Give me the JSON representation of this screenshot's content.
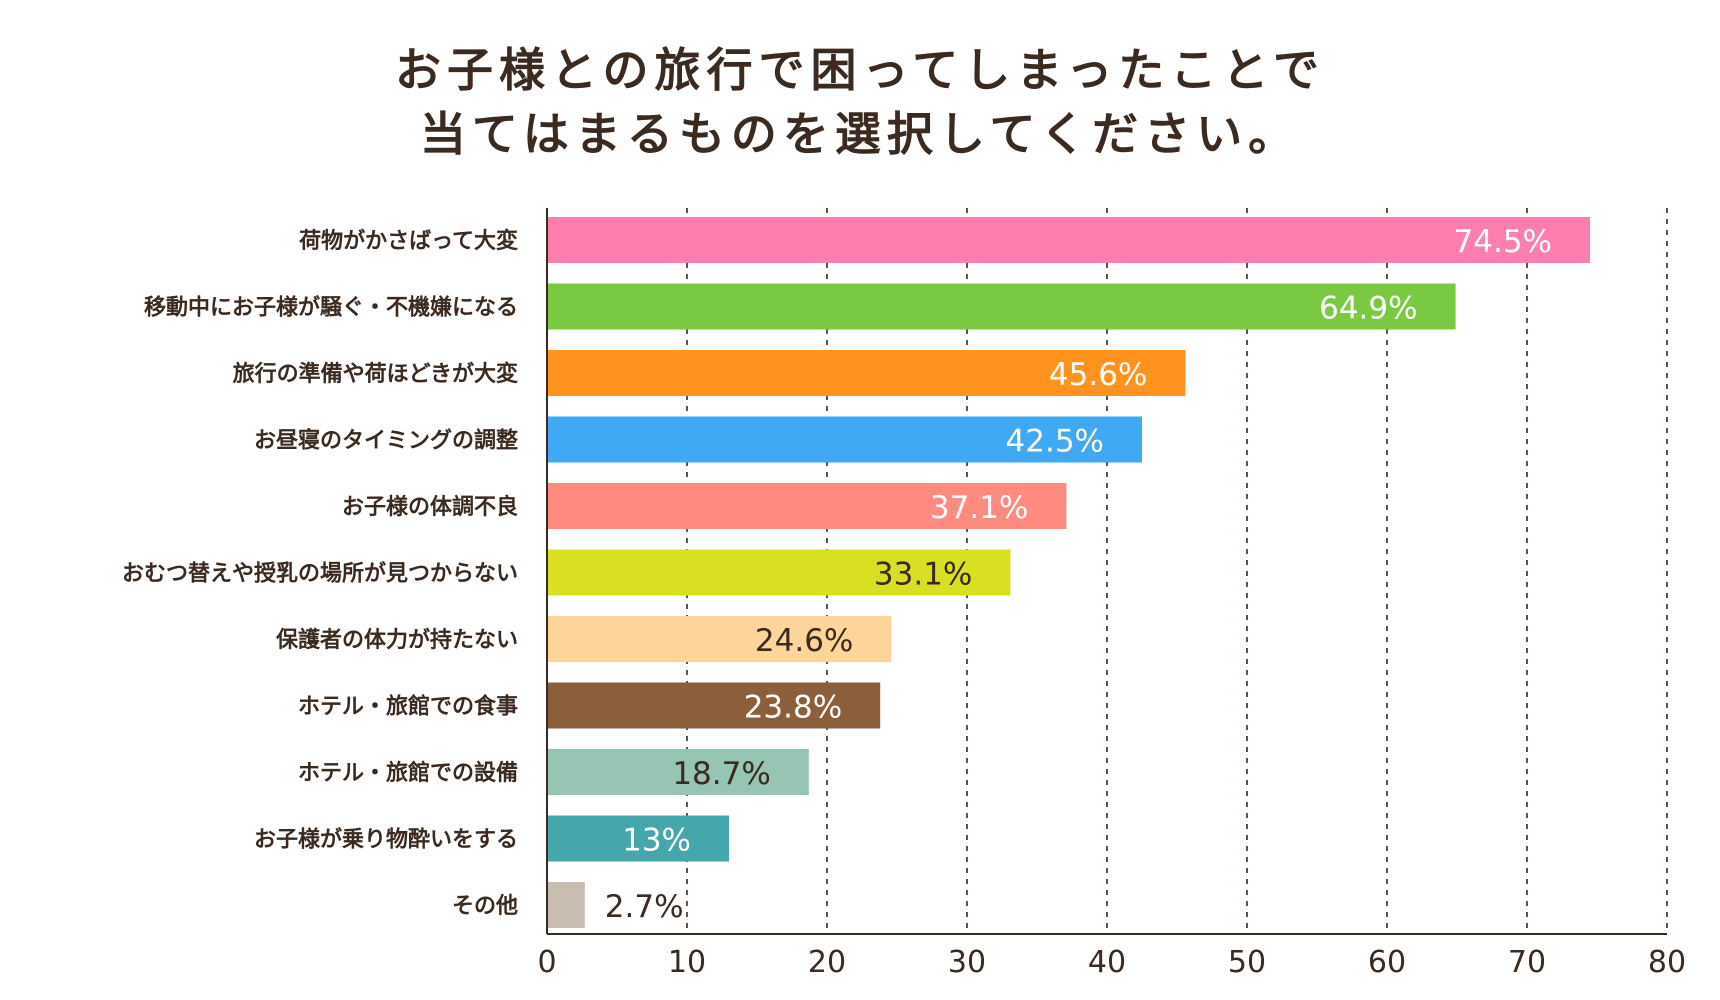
{
  "chart_data": {
    "type": "bar",
    "orientation": "horizontal",
    "title": "お子様との旅行で困ってしまったことで",
    "subtitle": "当てはまるものを選択してください。",
    "categories": [
      "荷物がかさばって大変",
      "移動中にお子様が騒ぐ・不機嫌になる",
      "旅行の準備や荷ほどきが大変",
      "お昼寝のタイミングの調整",
      "お子様の体調不良",
      "おむつ替えや授乳の場所が見つからない",
      "保護者の体力が持たない",
      "ホテル・旅館での食事",
      "ホテル・旅館での設備",
      "お子様が乗り物酔いをする",
      "その他"
    ],
    "values": [
      74.5,
      64.9,
      45.6,
      42.5,
      37.1,
      33.1,
      24.6,
      23.8,
      18.7,
      13,
      2.7
    ],
    "value_labels": [
      "74.5%",
      "64.9%",
      "45.6%",
      "42.5%",
      "37.1%",
      "33.1%",
      "24.6%",
      "23.8%",
      "18.7%",
      "13%",
      "2.7%"
    ],
    "colors": [
      "#ff7eb0",
      "#7ac943",
      "#ff931e",
      "#3fa9f5",
      "#ff8a80",
      "#d9e021",
      "#fdd59a",
      "#8b5e3c",
      "#96c5b4",
      "#45a6ab",
      "#c9bcb0"
    ],
    "label_colors": [
      "#ffffff",
      "#ffffff",
      "#ffffff",
      "#ffffff",
      "#ffffff",
      "#3b2a1f",
      "#3b2a1f",
      "#ffffff",
      "#3b2a1f",
      "#ffffff",
      "#3b2a1f"
    ],
    "xlim": [
      0,
      80
    ],
    "x_ticks": [
      0,
      10,
      20,
      30,
      40,
      50,
      60,
      70,
      80
    ],
    "grid": true,
    "grid_style": "dashed"
  }
}
